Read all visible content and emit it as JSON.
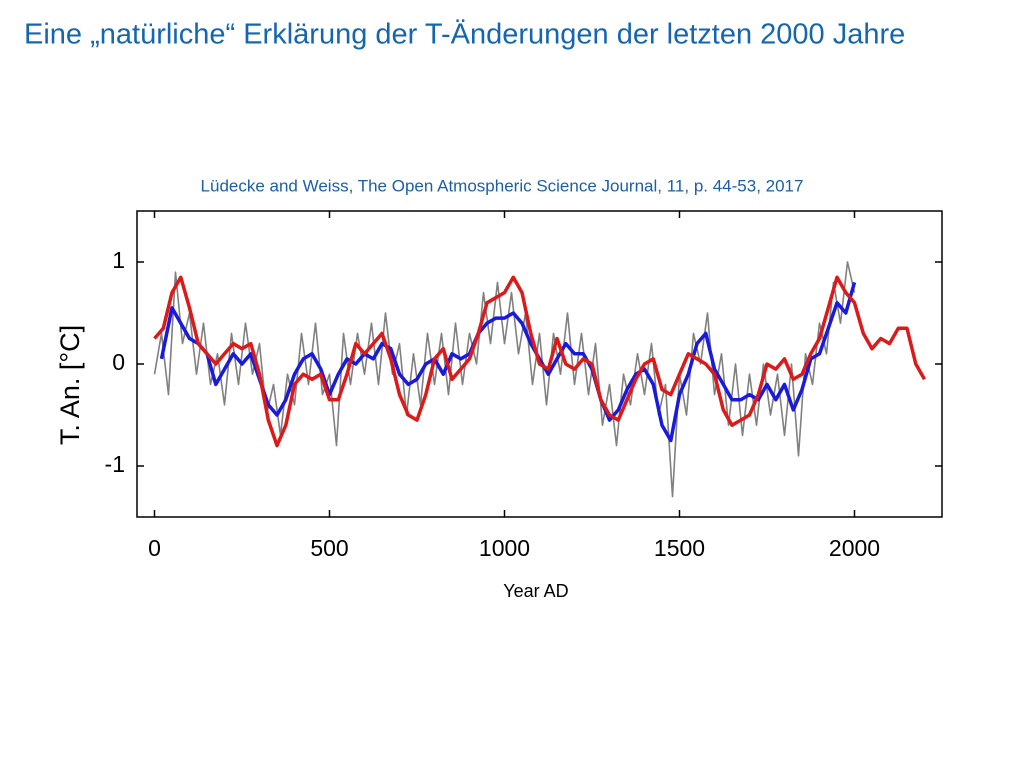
{
  "chart_data": {
    "type": "line",
    "title": "Eine „natürliche“ Erklärung der T-Änderungen der letzten 2000 Jahre",
    "subtitle": "Lüdecke and Weiss, The Open Atmospheric Science Journal, 11, p. 44-53, 2017",
    "xlabel": "Year AD",
    "ylabel": "T. An. [°C]",
    "xlim": [
      -50,
      2250
    ],
    "xticks": [
      0,
      500,
      1000,
      1500,
      2000
    ],
    "ylim": [
      -1.5,
      1.5
    ],
    "yticks": [
      -1,
      0,
      1
    ],
    "series": [
      {
        "color": "#808080",
        "x": [
          0,
          20,
          40,
          60,
          80,
          100,
          120,
          140,
          160,
          180,
          200,
          220,
          240,
          260,
          280,
          300,
          320,
          340,
          360,
          380,
          400,
          420,
          440,
          460,
          480,
          500,
          520,
          540,
          560,
          580,
          600,
          620,
          640,
          660,
          680,
          700,
          720,
          740,
          760,
          780,
          800,
          820,
          840,
          860,
          880,
          900,
          920,
          940,
          960,
          980,
          1000,
          1020,
          1040,
          1060,
          1080,
          1100,
          1120,
          1140,
          1160,
          1180,
          1200,
          1220,
          1240,
          1260,
          1280,
          1300,
          1320,
          1340,
          1360,
          1380,
          1400,
          1420,
          1440,
          1460,
          1480,
          1500,
          1520,
          1540,
          1560,
          1580,
          1600,
          1620,
          1640,
          1660,
          1680,
          1700,
          1720,
          1740,
          1760,
          1780,
          1800,
          1820,
          1840,
          1860,
          1880,
          1900,
          1920,
          1940,
          1960,
          1980,
          2000
        ],
        "values": [
          -0.1,
          0.3,
          -0.3,
          0.9,
          0.2,
          0.5,
          -0.1,
          0.4,
          -0.2,
          0.1,
          -0.4,
          0.3,
          -0.2,
          0.4,
          -0.1,
          0.2,
          -0.5,
          -0.2,
          -0.7,
          -0.1,
          -0.4,
          0.3,
          -0.2,
          0.4,
          -0.3,
          -0.1,
          -0.8,
          0.3,
          -0.2,
          0.3,
          -0.1,
          0.4,
          -0.2,
          0.5,
          -0.1,
          0.2,
          -0.5,
          0.1,
          -0.4,
          0.3,
          -0.2,
          0.3,
          -0.3,
          0.4,
          -0.2,
          0.3,
          0.0,
          0.7,
          0.2,
          0.8,
          0.2,
          0.7,
          0.1,
          0.5,
          -0.2,
          0.3,
          -0.4,
          0.3,
          -0.1,
          0.5,
          -0.2,
          0.3,
          -0.3,
          0.2,
          -0.6,
          -0.2,
          -0.8,
          -0.1,
          -0.4,
          0.1,
          -0.3,
          0.2,
          -0.5,
          -0.2,
          -1.3,
          -0.1,
          -0.5,
          0.3,
          0.0,
          0.5,
          -0.3,
          0.1,
          -0.6,
          0.0,
          -0.7,
          -0.1,
          -0.6,
          0.0,
          -0.5,
          -0.1,
          -0.7,
          0.0,
          -0.9,
          0.1,
          -0.2,
          0.4,
          0.1,
          0.8,
          0.4,
          1.0,
          0.7
        ]
      },
      {
        "color": "#1a1adc",
        "x": [
          20,
          50,
          75,
          100,
          125,
          150,
          175,
          200,
          225,
          250,
          275,
          300,
          325,
          350,
          375,
          400,
          425,
          450,
          475,
          500,
          525,
          550,
          575,
          600,
          625,
          650,
          675,
          700,
          725,
          750,
          775,
          800,
          825,
          850,
          875,
          900,
          925,
          950,
          975,
          1000,
          1025,
          1050,
          1075,
          1100,
          1125,
          1150,
          1175,
          1200,
          1225,
          1250,
          1275,
          1300,
          1325,
          1350,
          1375,
          1400,
          1425,
          1450,
          1475,
          1500,
          1525,
          1550,
          1575,
          1600,
          1625,
          1650,
          1675,
          1700,
          1725,
          1750,
          1775,
          1800,
          1825,
          1850,
          1875,
          1900,
          1925,
          1950,
          1975,
          2000
        ],
        "values": [
          0.05,
          0.55,
          0.4,
          0.25,
          0.2,
          0.1,
          -0.2,
          -0.05,
          0.1,
          0.0,
          0.1,
          -0.15,
          -0.4,
          -0.5,
          -0.35,
          -0.1,
          0.05,
          0.1,
          -0.05,
          -0.3,
          -0.1,
          0.05,
          0.0,
          0.1,
          0.05,
          0.2,
          0.15,
          -0.1,
          -0.2,
          -0.15,
          0.0,
          0.05,
          -0.1,
          0.1,
          0.05,
          0.1,
          0.3,
          0.4,
          0.45,
          0.45,
          0.5,
          0.4,
          0.2,
          0.05,
          -0.1,
          0.05,
          0.2,
          0.1,
          0.1,
          -0.05,
          -0.35,
          -0.55,
          -0.45,
          -0.25,
          -0.1,
          -0.05,
          -0.2,
          -0.6,
          -0.75,
          -0.3,
          -0.1,
          0.2,
          0.3,
          -0.05,
          -0.2,
          -0.35,
          -0.35,
          -0.3,
          -0.35,
          -0.2,
          -0.35,
          -0.2,
          -0.45,
          -0.25,
          0.05,
          0.1,
          0.35,
          0.6,
          0.5,
          0.8
        ]
      },
      {
        "color": "#dc1a1a",
        "x": [
          0,
          25,
          50,
          75,
          100,
          125,
          150,
          175,
          200,
          225,
          250,
          275,
          300,
          325,
          350,
          375,
          400,
          425,
          450,
          475,
          500,
          525,
          550,
          575,
          600,
          625,
          650,
          675,
          700,
          725,
          750,
          775,
          800,
          825,
          850,
          875,
          900,
          925,
          950,
          975,
          1000,
          1025,
          1050,
          1075,
          1100,
          1125,
          1150,
          1175,
          1200,
          1225,
          1250,
          1275,
          1300,
          1325,
          1350,
          1375,
          1400,
          1425,
          1450,
          1475,
          1500,
          1525,
          1550,
          1575,
          1600,
          1625,
          1650,
          1675,
          1700,
          1725,
          1750,
          1775,
          1800,
          1825,
          1850,
          1875,
          1900,
          1925,
          1950,
          1975,
          2000,
          2025,
          2050,
          2075,
          2100,
          2125,
          2150,
          2175,
          2200
        ],
        "values": [
          0.25,
          0.35,
          0.7,
          0.85,
          0.55,
          0.2,
          0.1,
          0.0,
          0.1,
          0.2,
          0.15,
          0.2,
          -0.1,
          -0.55,
          -0.8,
          -0.6,
          -0.2,
          -0.1,
          -0.15,
          -0.1,
          -0.35,
          -0.35,
          -0.1,
          0.2,
          0.1,
          0.2,
          0.3,
          0.05,
          -0.3,
          -0.5,
          -0.55,
          -0.3,
          0.05,
          0.15,
          -0.15,
          -0.05,
          0.05,
          0.3,
          0.6,
          0.65,
          0.7,
          0.85,
          0.7,
          0.3,
          0.0,
          -0.05,
          0.25,
          0.0,
          -0.05,
          0.05,
          0.0,
          -0.35,
          -0.5,
          -0.55,
          -0.35,
          -0.15,
          0.0,
          0.05,
          -0.25,
          -0.3,
          -0.1,
          0.1,
          0.05,
          0.0,
          -0.1,
          -0.45,
          -0.6,
          -0.55,
          -0.5,
          -0.3,
          0.0,
          -0.05,
          0.05,
          -0.15,
          -0.1,
          0.1,
          0.25,
          0.55,
          0.85,
          0.7,
          0.6,
          0.3,
          0.15,
          0.25,
          0.2,
          0.35,
          0.35,
          0.0,
          -0.15
        ]
      }
    ]
  }
}
